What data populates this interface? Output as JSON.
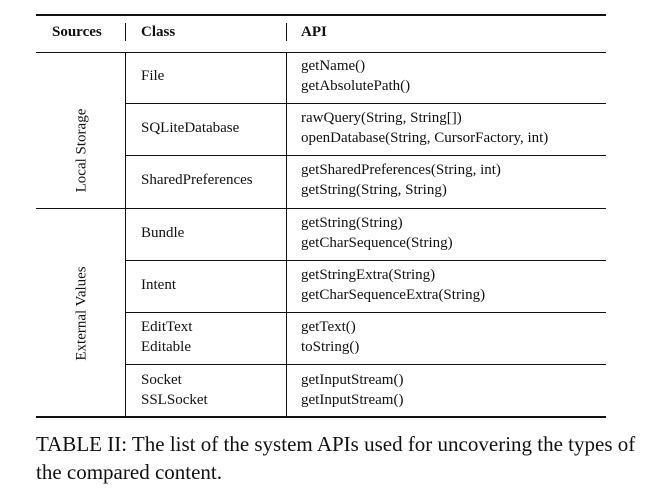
{
  "table": {
    "headers": {
      "sources": "Sources",
      "class": "Class",
      "api": "API"
    },
    "groups": [
      {
        "source": "Local Storage",
        "rows": [
          {
            "class": [
              "File"
            ],
            "api": [
              "getName()",
              "getAbsolutePath()"
            ]
          },
          {
            "class": [
              "SQLiteDatabase"
            ],
            "api": [
              "rawQuery(String, String[])",
              "openDatabase(String, CursorFactory, int)"
            ]
          },
          {
            "class": [
              "SharedPreferences"
            ],
            "api": [
              "getSharedPreferences(String, int)",
              "getString(String, String)"
            ]
          }
        ]
      },
      {
        "source": "External Values",
        "rows": [
          {
            "class": [
              "Bundle"
            ],
            "api": [
              "getString(String)",
              "getCharSequence(String)"
            ]
          },
          {
            "class": [
              "Intent"
            ],
            "api": [
              "getStringExtra(String)",
              "getCharSequenceExtra(String)"
            ]
          },
          {
            "class": [
              "EditText",
              "Editable"
            ],
            "api": [
              "getText()",
              "toString()"
            ]
          },
          {
            "class": [
              "Socket",
              "SSLSocket"
            ],
            "api": [
              "getInputStream()",
              "getInputStream()"
            ]
          }
        ]
      }
    ]
  },
  "caption": "TABLE II: The list of the system APIs used for uncovering the types of the compared content."
}
